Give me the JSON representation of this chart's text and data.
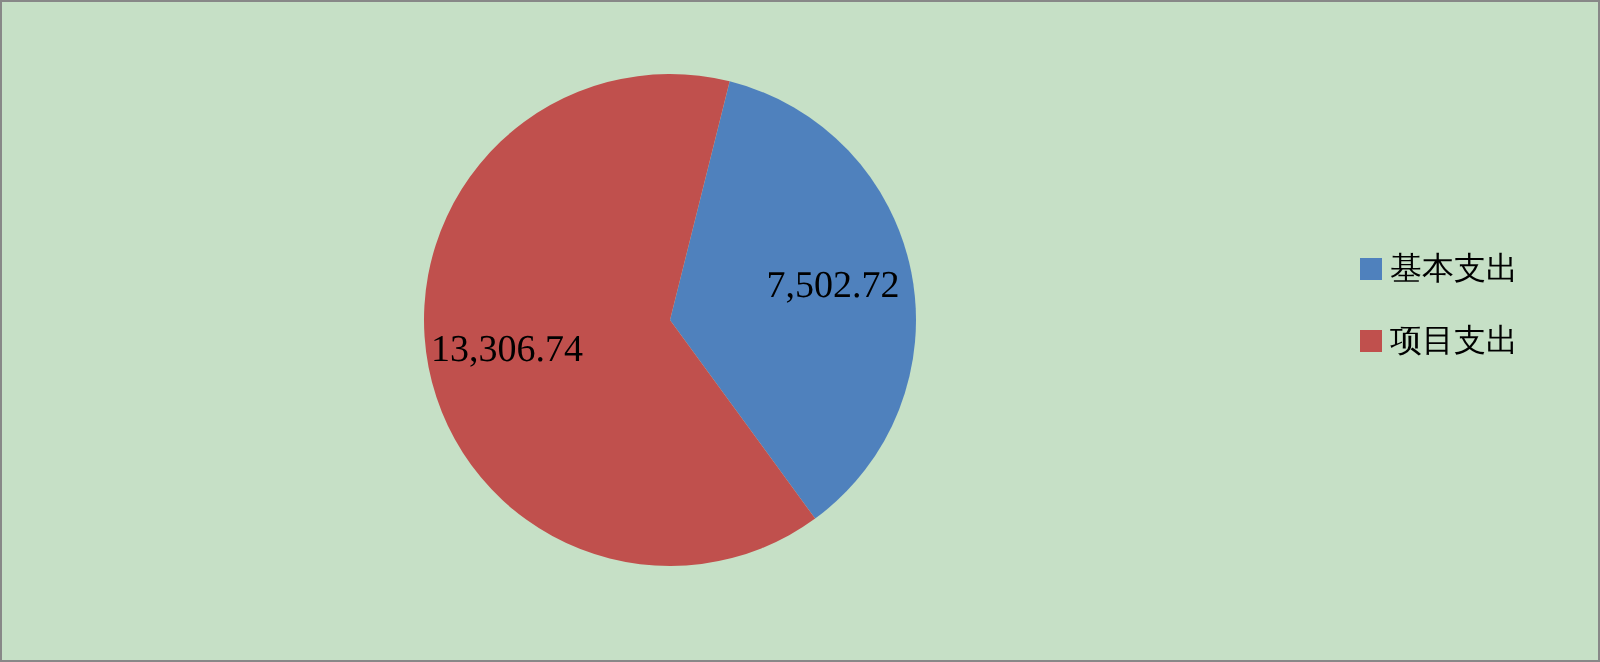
{
  "chart_data": {
    "type": "pie",
    "categories": [
      "基本支出",
      "项目支出"
    ],
    "values": [
      7502.72,
      13306.74
    ],
    "value_labels": [
      "7,502.72",
      "13,306.74"
    ],
    "colors": [
      "#4f81bd",
      "#c0504d"
    ],
    "legend": "right"
  }
}
